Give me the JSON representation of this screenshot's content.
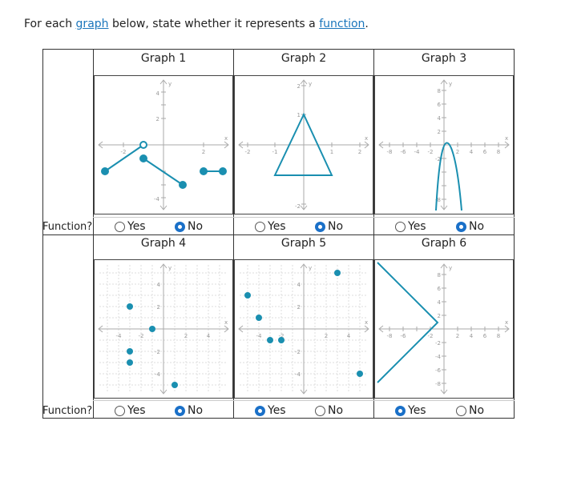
{
  "prompt": {
    "pre": "For each ",
    "link1": "graph",
    "mid": " below, state whether it represents a ",
    "link2": "function",
    "post": "."
  },
  "row_label": "Function?",
  "option_yes": "Yes",
  "option_no": "No",
  "graphs": [
    {
      "title": "Graph 1",
      "answer": "No"
    },
    {
      "title": "Graph 2",
      "answer": "No"
    },
    {
      "title": "Graph 3",
      "answer": "No"
    },
    {
      "title": "Graph 4",
      "answer": "No"
    },
    {
      "title": "Graph 5",
      "answer": "Yes"
    },
    {
      "title": "Graph 6",
      "answer": "Yes"
    }
  ],
  "axis": {
    "x": "x",
    "y": "y"
  },
  "colors": {
    "plot": "#1a8fb0",
    "selected": "#1a70c8"
  }
}
